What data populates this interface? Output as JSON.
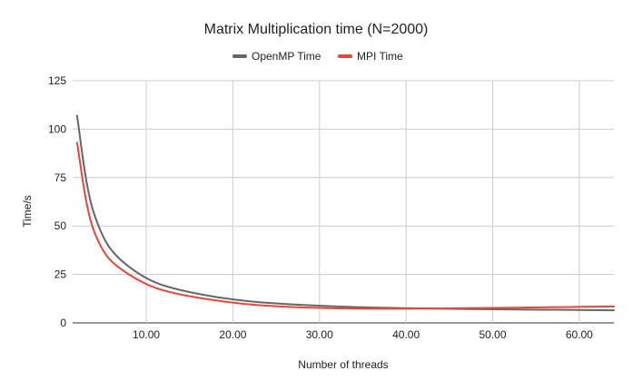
{
  "chart_data": {
    "type": "line",
    "title": "Matrix Multiplication time (N=2000)",
    "xlabel": "Number of threads",
    "ylabel": "Time/s",
    "xlim": [
      1.5,
      64
    ],
    "ylim": [
      0,
      125
    ],
    "x_ticks": [
      10,
      20,
      30,
      40,
      50,
      60
    ],
    "x_tick_labels": [
      "10.00",
      "20.00",
      "30.00",
      "40.00",
      "50.00",
      "60.00"
    ],
    "y_ticks": [
      0,
      25,
      50,
      75,
      100,
      125
    ],
    "y_tick_labels": [
      "0",
      "25",
      "50",
      "75",
      "100",
      "125"
    ],
    "grid": true,
    "legend_position": "top",
    "series": [
      {
        "name": "OpenMP Time",
        "color": "#666666",
        "x": [
          2,
          4,
          8,
          16,
          32,
          64
        ],
        "y": [
          107,
          56,
          29,
          15,
          8.5,
          6.5
        ]
      },
      {
        "name": "MPI Time",
        "color": "#e8453c",
        "x": [
          2,
          4,
          8,
          16,
          32,
          64
        ],
        "y": [
          93,
          47,
          25,
          13,
          7.5,
          8.5
        ]
      }
    ]
  }
}
